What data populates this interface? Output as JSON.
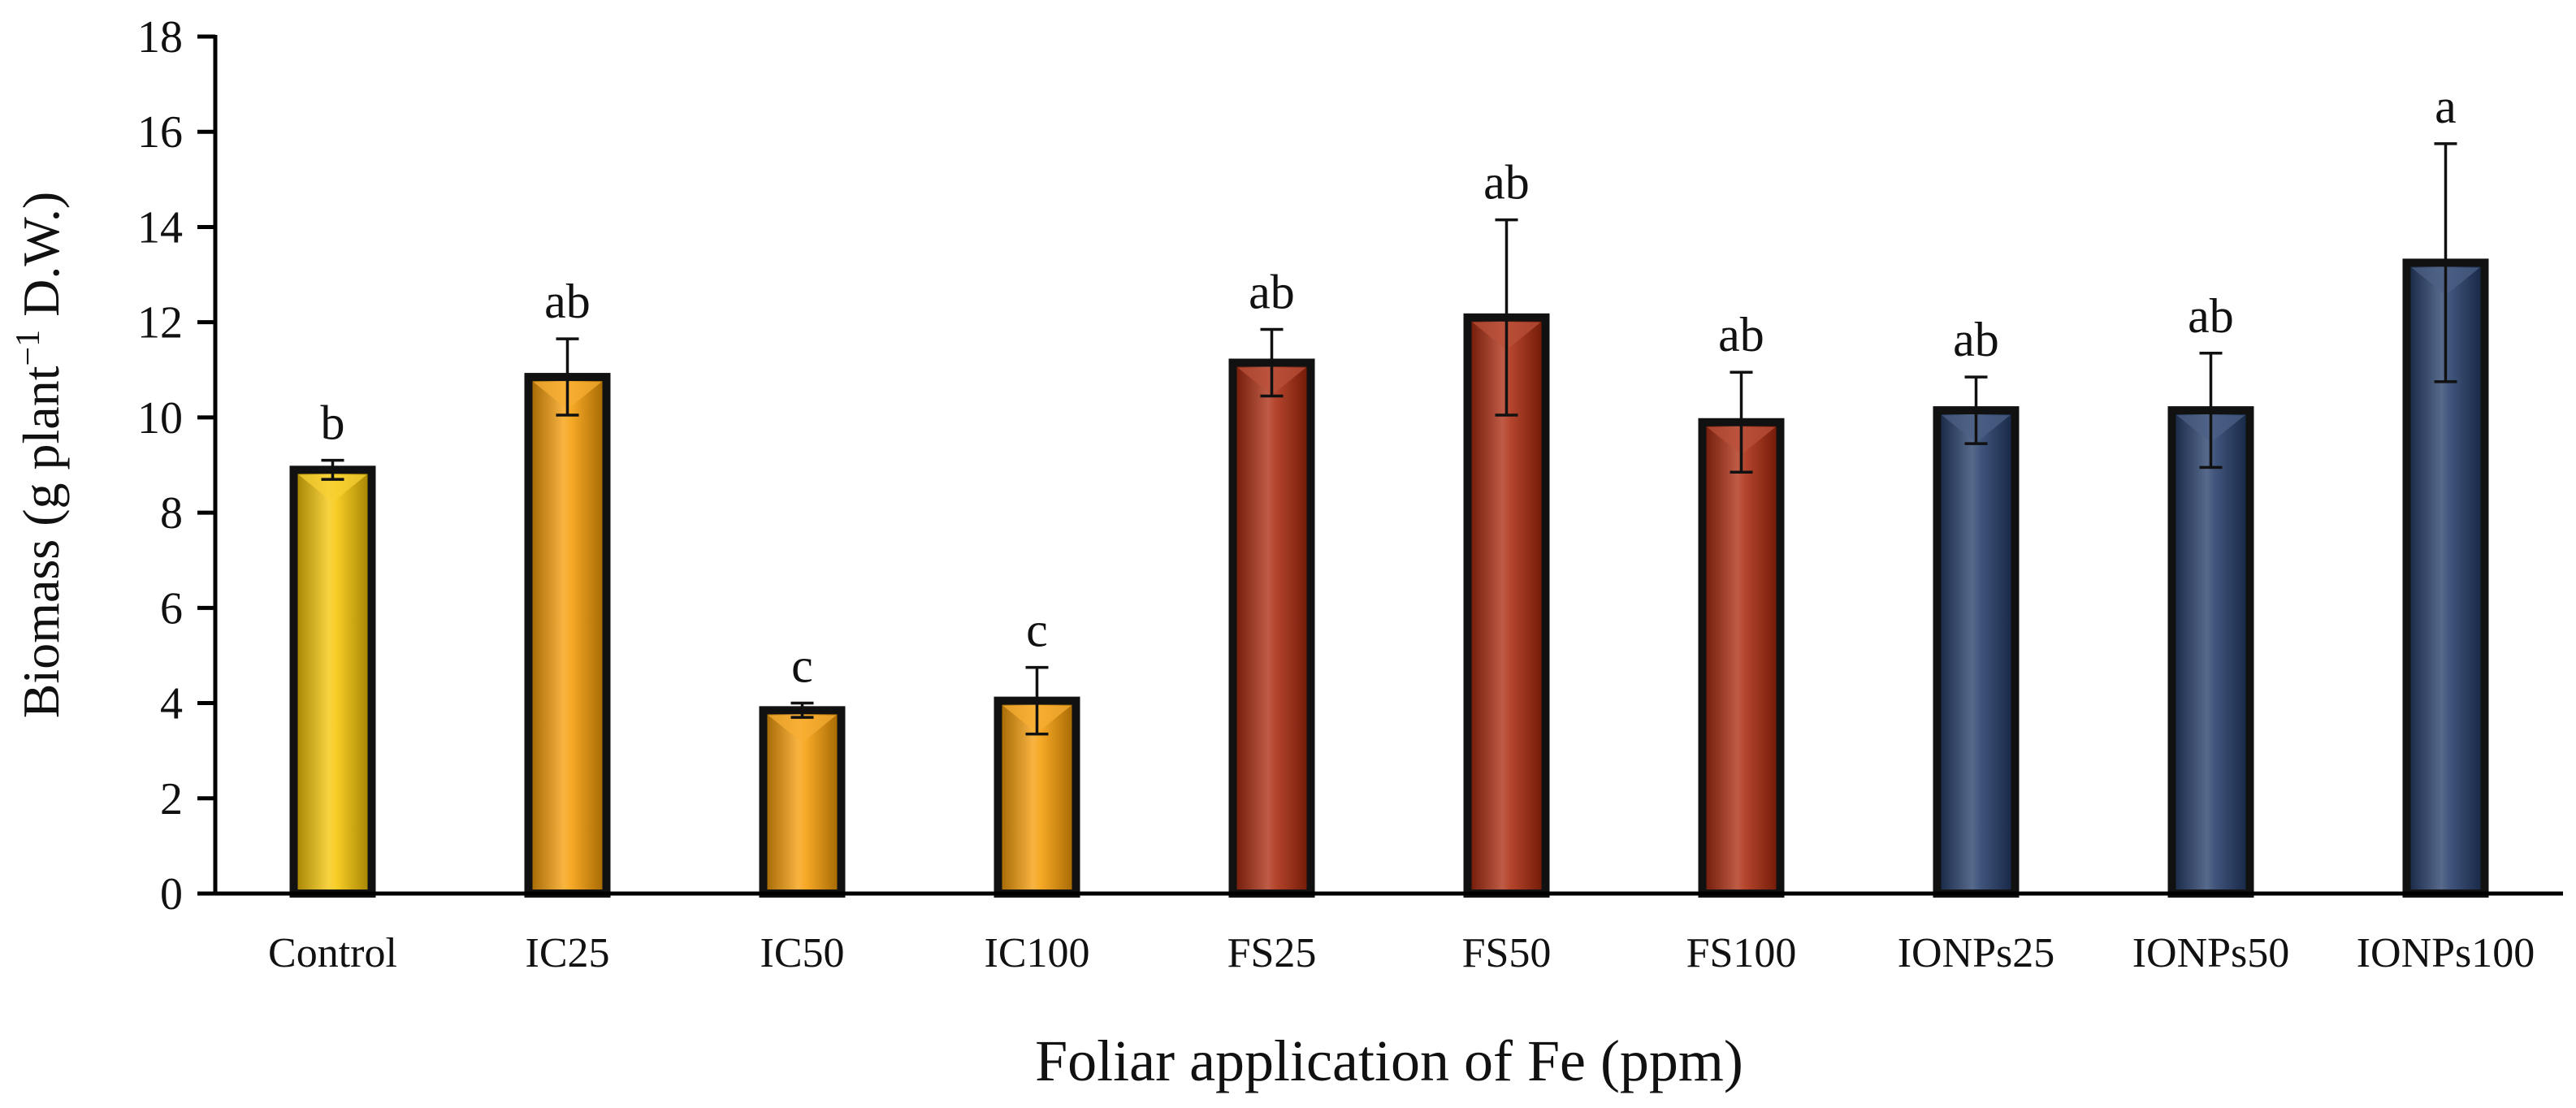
{
  "chart_data": {
    "type": "bar",
    "title": "",
    "xlabel": "Foliar application of Fe (ppm)",
    "ylabel": {
      "prefix": "Biomass  (g plant",
      "superscript": "−1",
      "suffix": " D.W.)"
    },
    "ylim": [
      0,
      18
    ],
    "yticks": [
      0,
      2,
      4,
      6,
      8,
      10,
      12,
      14,
      16,
      18
    ],
    "grid": false,
    "legend": "none",
    "categories": [
      "Control",
      "IC25",
      "IC50",
      "IC100",
      "FS25",
      "FS50",
      "FS100",
      "IONPs25",
      "IONPs50",
      "IONPs100"
    ],
    "values": [
      8.9,
      10.85,
      3.85,
      4.05,
      11.15,
      12.1,
      9.9,
      10.15,
      10.15,
      13.25
    ],
    "errors": [
      0.2,
      0.8,
      0.15,
      0.7,
      0.7,
      2.05,
      1.05,
      0.7,
      1.2,
      2.5
    ],
    "significance": [
      "b",
      "ab",
      "c",
      "c",
      "ab",
      "ab",
      "ab",
      "ab",
      "ab",
      "a"
    ],
    "group_colors": {
      "Control": "#f5c400",
      "IC": "#f59a00",
      "FS": "#a82408",
      "IONPs": "#1f3866"
    },
    "bar_groups": [
      "Control",
      "IC",
      "IC",
      "IC",
      "FS",
      "FS",
      "FS",
      "IONPs",
      "IONPs",
      "IONPs"
    ]
  }
}
